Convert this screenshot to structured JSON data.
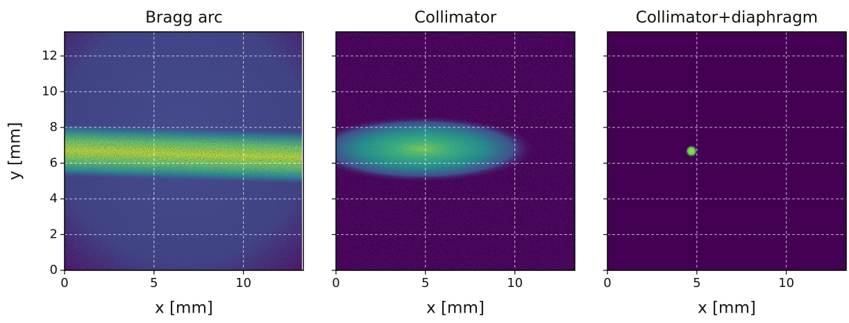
{
  "chart_data": [
    {
      "type": "heatmap",
      "title": "Bragg arc",
      "xlabel": "x [mm]",
      "ylabel": "y [mm]",
      "xlim": [
        0,
        13.35
      ],
      "xticks": [
        0,
        5,
        10
      ],
      "ylim": [
        0,
        13.35
      ],
      "yticks": [
        0,
        2,
        4,
        6,
        8,
        10,
        12
      ],
      "grid": true
    },
    {
      "type": "heatmap",
      "title": "Collimator",
      "xlabel": "x [mm]",
      "xlim": [
        0,
        13.35
      ],
      "xticks": [
        0,
        5,
        10
      ],
      "ylim": [
        0,
        13.35
      ],
      "yticks": [
        0,
        2,
        4,
        6,
        8,
        10,
        12
      ],
      "grid": true,
      "ytick_labels": false
    },
    {
      "type": "heatmap",
      "title": "Collimator+diaphragm",
      "xlabel": "x [mm]",
      "xlim": [
        0,
        13.35
      ],
      "xticks": [
        0,
        5,
        10
      ],
      "ylim": [
        0,
        13.35
      ],
      "yticks": [
        0,
        2,
        4,
        6,
        8,
        10,
        12
      ],
      "grid": true,
      "ytick_labels": false
    }
  ]
}
